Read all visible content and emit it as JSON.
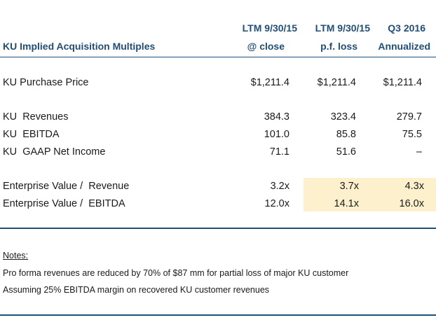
{
  "header": {
    "title": "KU Implied Acquisition Multiples",
    "columns": [
      {
        "line1": "LTM 9/30/15",
        "line2": "@ close"
      },
      {
        "line1": "LTM 9/30/15",
        "line2": "p.f. loss"
      },
      {
        "line1": "Q3 2016",
        "line2": "Annualized"
      }
    ]
  },
  "rows": [
    {
      "label": "KU Purchase Price",
      "values": [
        "$1,211.4",
        "$1,211.4",
        "$1,211.4"
      ]
    },
    {
      "label": "KU  Revenues",
      "values": [
        "384.3",
        "323.4",
        "279.7"
      ]
    },
    {
      "label": "KU  EBITDA",
      "values": [
        "101.0",
        "85.8",
        "75.5"
      ]
    },
    {
      "label": "KU  GAAP Net Income",
      "values": [
        "71.1",
        "51.6",
        "–"
      ]
    },
    {
      "label": "Enterprise Value /  Revenue",
      "values": [
        "3.2x",
        "3.7x",
        "4.3x"
      ]
    },
    {
      "label": "Enterprise Value /  EBITDA",
      "values": [
        "12.0x",
        "14.1x",
        "16.0x"
      ]
    }
  ],
  "notes": {
    "heading": "Notes:",
    "items": [
      "Pro forma revenues are reduced by 70% of $87 mm for partial loss of major KU customer",
      "Assuming 25% EBITDA margin on recovered KU customer revenues"
    ]
  },
  "colors": {
    "accent": "#1f4e79",
    "highlight": "#fdf1cd"
  }
}
